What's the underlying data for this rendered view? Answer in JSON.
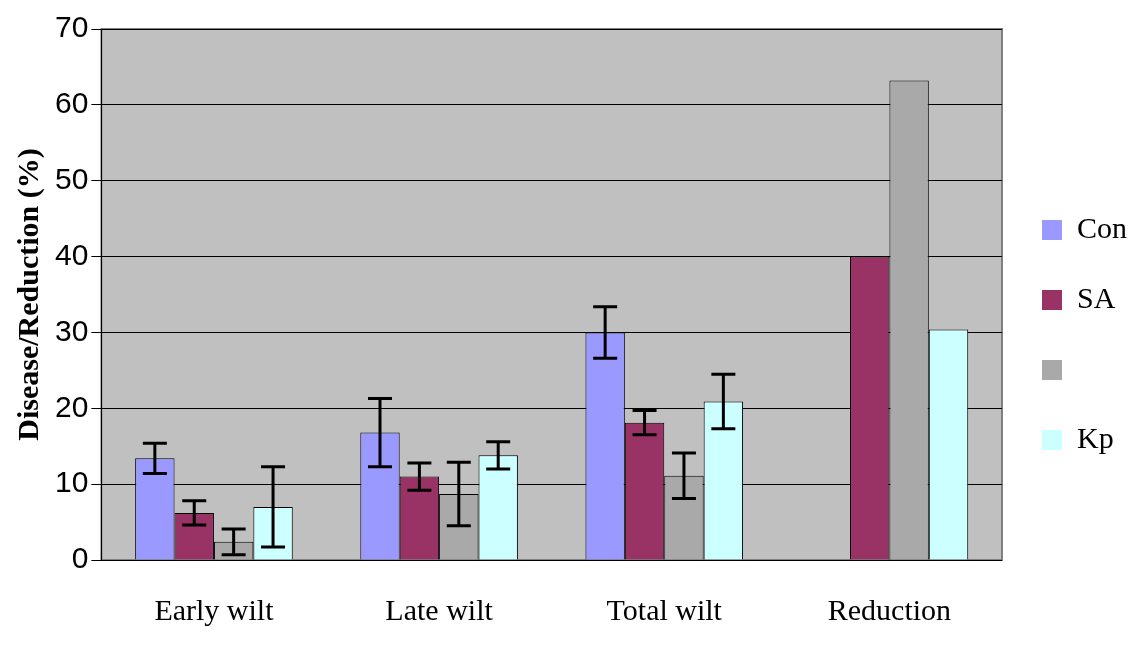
{
  "chart_data": {
    "type": "bar",
    "ylabel": "Disease/Reduction (%)",
    "categories": [
      "Early wilt",
      "Late wilt",
      "Total wilt",
      "Reduction"
    ],
    "series": [
      {
        "name": "Con",
        "color": "#9999ff",
        "values": [
          13.4,
          16.8,
          30.0,
          null
        ],
        "errors": [
          2,
          4.5,
          3.4,
          null
        ]
      },
      {
        "name": "SA",
        "color": "#993366",
        "values": [
          6.2,
          11.0,
          18.1,
          40
        ],
        "errors": [
          1.6,
          1.8,
          1.6,
          null
        ]
      },
      {
        "color": "#a9a9a9",
        "values": [
          2.4,
          8.7,
          11.1,
          63.2
        ],
        "errors": [
          1.7,
          4.2,
          3,
          null
        ]
      },
      {
        "name": "Kp",
        "color": "#ccffff",
        "values": [
          7.0,
          13.8,
          20.9,
          30.4
        ],
        "errors": [
          5.3,
          1.8,
          3.6,
          null
        ]
      }
    ],
    "ylim": [
      0,
      70
    ],
    "yticks": [
      0,
      10,
      20,
      30,
      40,
      50,
      60,
      70
    ],
    "grid": "y",
    "legend": "right"
  }
}
